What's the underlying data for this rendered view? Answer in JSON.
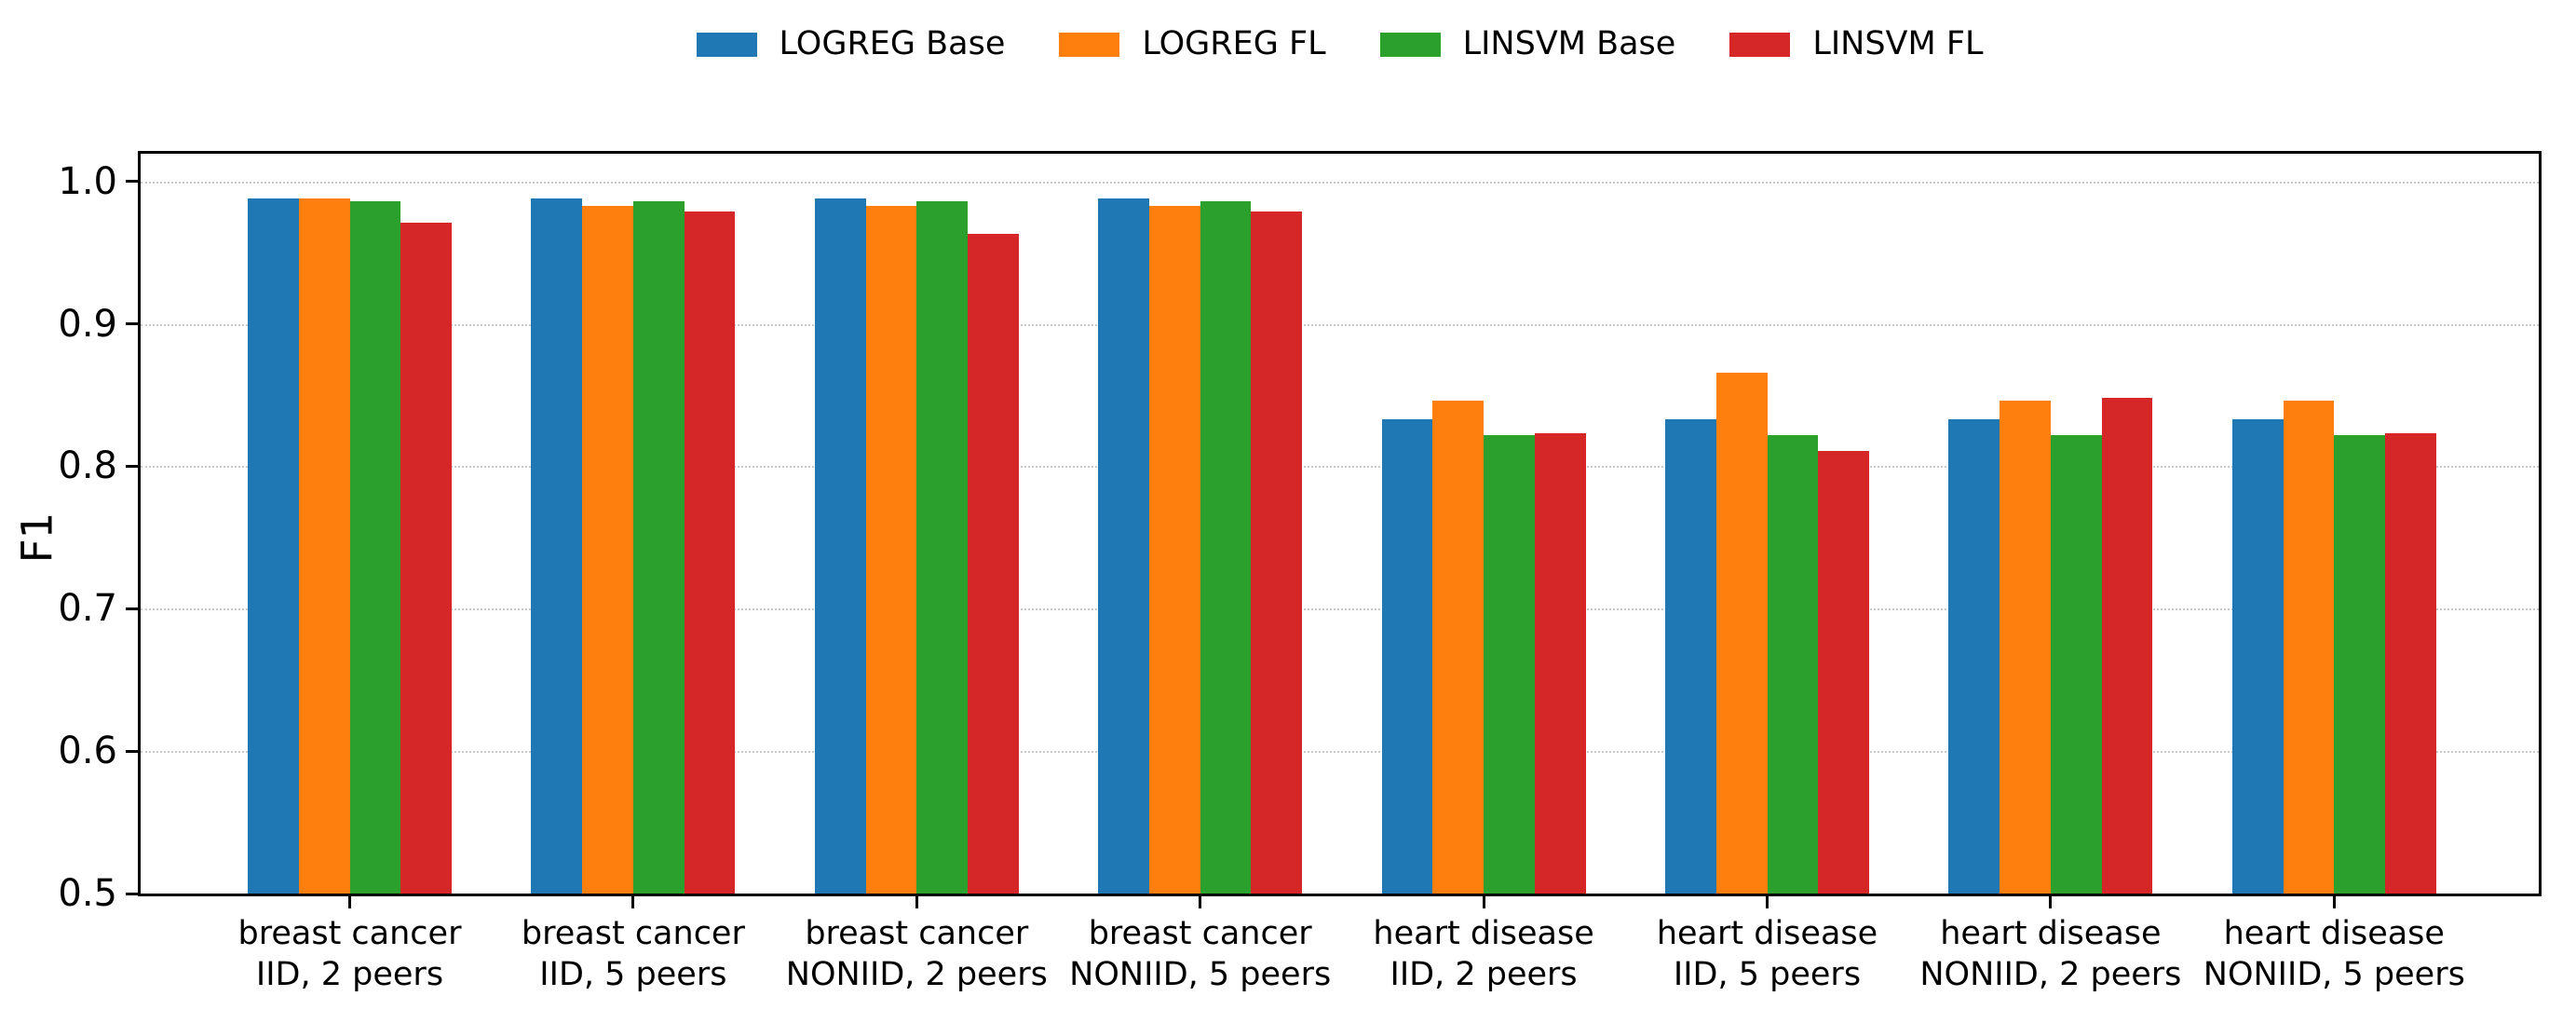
{
  "chart_data": {
    "type": "bar",
    "title": "",
    "xlabel": "",
    "ylabel": "F1",
    "ylim": [
      0.5,
      1.02
    ],
    "ytick_values": [
      0.5,
      0.6,
      0.7,
      0.8,
      0.9,
      1.0
    ],
    "ytick_labels": [
      "0.5",
      "0.6",
      "0.7",
      "0.8",
      "0.9",
      "1.0"
    ],
    "grid": "horizontal dotted",
    "legend_position": "top center",
    "categories": [
      "breast cancer\nIID, 2 peers",
      "breast cancer\nIID, 5 peers",
      "breast cancer\nNONIID, 2 peers",
      "breast cancer\nNONIID, 5 peers",
      "heart disease\nIID, 2 peers",
      "heart disease\nIID, 5 peers",
      "heart disease\nNONIID, 2 peers",
      "heart disease\nNONIID, 5 peers"
    ],
    "series": [
      {
        "name": "LOGREG Base",
        "color": "#1f77b4",
        "values": [
          0.988,
          0.988,
          0.988,
          0.988,
          0.833,
          0.833,
          0.833,
          0.833
        ]
      },
      {
        "name": "LOGREG FL",
        "color": "#ff7f0e",
        "values": [
          0.988,
          0.983,
          0.983,
          0.983,
          0.846,
          0.866,
          0.846,
          0.846
        ]
      },
      {
        "name": "LINSVM Base",
        "color": "#2ca02c",
        "values": [
          0.986,
          0.986,
          0.986,
          0.986,
          0.822,
          0.822,
          0.822,
          0.822
        ]
      },
      {
        "name": "LINSVM FL",
        "color": "#d62728",
        "values": [
          0.971,
          0.979,
          0.963,
          0.979,
          0.823,
          0.811,
          0.848,
          0.823
        ]
      }
    ]
  }
}
